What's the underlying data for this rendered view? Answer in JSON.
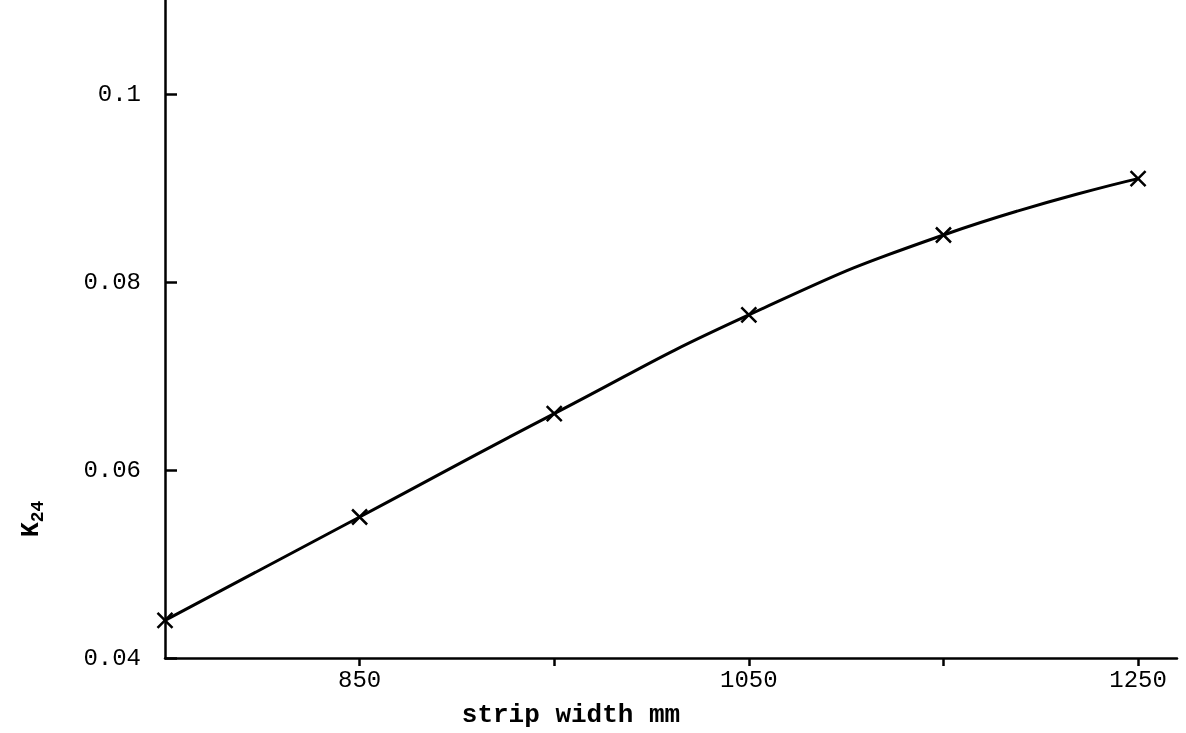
{
  "chart_data": {
    "type": "line",
    "xlabel": "strip width mm",
    "ylabel": "K$_{24}$",
    "x": [
      750,
      850,
      950,
      1050,
      1150,
      1250
    ],
    "values": [
      0.044,
      0.055,
      0.066,
      0.0765,
      0.085,
      0.091
    ],
    "color": "#000000",
    "xlim": [
      750,
      1270
    ],
    "xticks": [
      850,
      {
        "value": 950,
        "label": null
      },
      1050,
      {
        "value": 1150,
        "label": null
      },
      1250
    ],
    "ylim": [
      0.04,
      0.11
    ],
    "yticks": [
      0.04,
      0.06,
      0.08,
      0.1
    ],
    "marker": "cross",
    "grid": false
  }
}
